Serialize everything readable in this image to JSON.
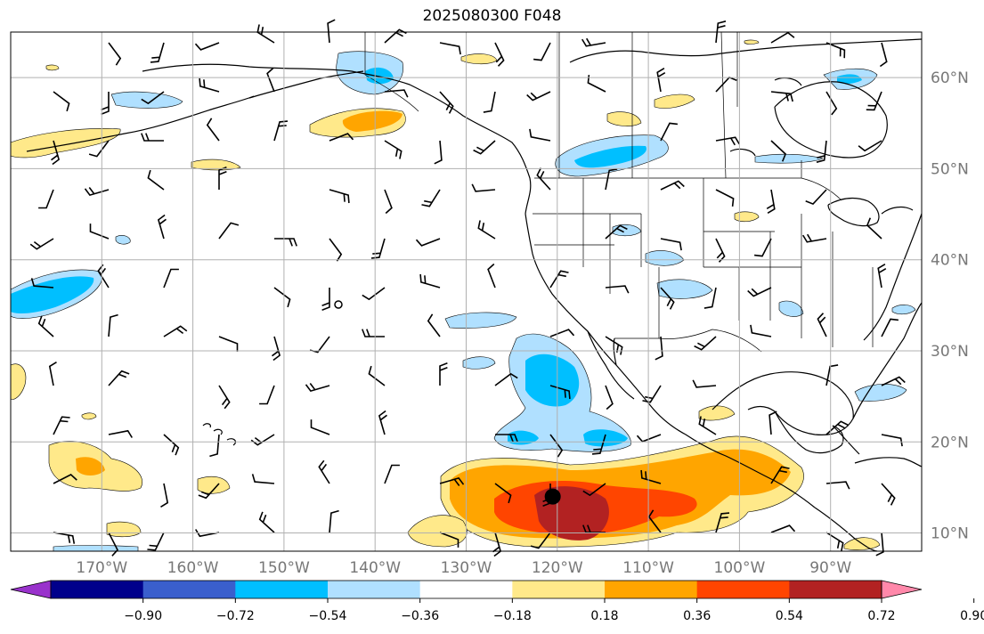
{
  "title": "2025080300 F048",
  "map": {
    "lon_range": [
      -180,
      -80
    ],
    "lat_range": [
      8,
      65
    ],
    "lon_ticks": [
      {
        "lon": -170,
        "label": "170°W"
      },
      {
        "lon": -160,
        "label": "160°W"
      },
      {
        "lon": -150,
        "label": "150°W"
      },
      {
        "lon": -140,
        "label": "140°W"
      },
      {
        "lon": -130,
        "label": "130°W"
      },
      {
        "lon": -120,
        "label": "120°W"
      },
      {
        "lon": -110,
        "label": "110°W"
      },
      {
        "lon": -100,
        "label": "100°W"
      },
      {
        "lon": -90,
        "label": "90°W"
      }
    ],
    "lat_ticks": [
      {
        "lat": 10,
        "label": "10°N"
      },
      {
        "lat": 20,
        "label": "20°N"
      },
      {
        "lat": 30,
        "label": "30°N"
      },
      {
        "lat": 40,
        "label": "40°N"
      },
      {
        "lat": 50,
        "label": "50°N"
      },
      {
        "lat": 60,
        "label": "60°N"
      }
    ],
    "grid": true,
    "marker": {
      "lon": -120.5,
      "lat": 14.0
    }
  },
  "colorbar": {
    "colors": [
      "#9932cc",
      "#00008b",
      "#3a5fcd",
      "#00bfff",
      "#b0e0ff",
      "#ffffff",
      "#ffe98a",
      "#ffa500",
      "#ff4500",
      "#b22222",
      "#ff88aa"
    ],
    "ticks": [
      "−0.90",
      "−0.72",
      "−0.54",
      "−0.36",
      "−0.18",
      "0.18",
      "0.36",
      "0.54",
      "0.72",
      "0.90"
    ]
  },
  "palette": {
    "lightblue": "#b0e0ff",
    "blue": "#00bfff",
    "yellow": "#ffe98a",
    "orange": "#ffa500",
    "redorange": "#ff4500",
    "darkred": "#b22222",
    "land": "#000000",
    "grid": "#b0b0b0"
  }
}
